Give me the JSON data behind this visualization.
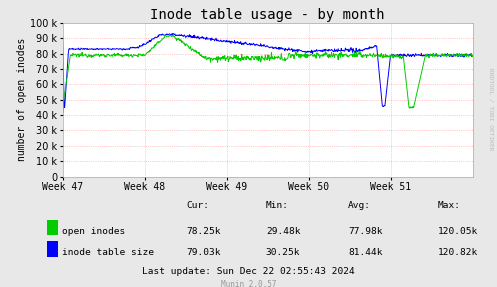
{
  "title": "Inode table usage - by month",
  "ylabel": "number of open inodes",
  "watermark": "RRDTOOL / TOBI OETIKER",
  "munin_version": "Munin 2.0.57",
  "background_color": "#e8e8e8",
  "plot_bg_color": "#ffffff",
  "grid_color": "#ff9999",
  "x_labels": [
    "Week 47",
    "Week 48",
    "Week 49",
    "Week 50",
    "Week 51"
  ],
  "ylim": [
    0,
    100000
  ],
  "legend_open": "open inodes",
  "legend_table": "inode table size",
  "color_open": "#00cc00",
  "color_table": "#0000ff",
  "stats_cur_open": "78.25k",
  "stats_min_open": "29.48k",
  "stats_avg_open": "77.98k",
  "stats_max_open": "120.05k",
  "stats_cur_table": "79.03k",
  "stats_min_table": "30.25k",
  "stats_avg_table": "81.44k",
  "stats_max_table": "120.82k",
  "last_update": "Last update: Sun Dec 22 02:55:43 2024"
}
